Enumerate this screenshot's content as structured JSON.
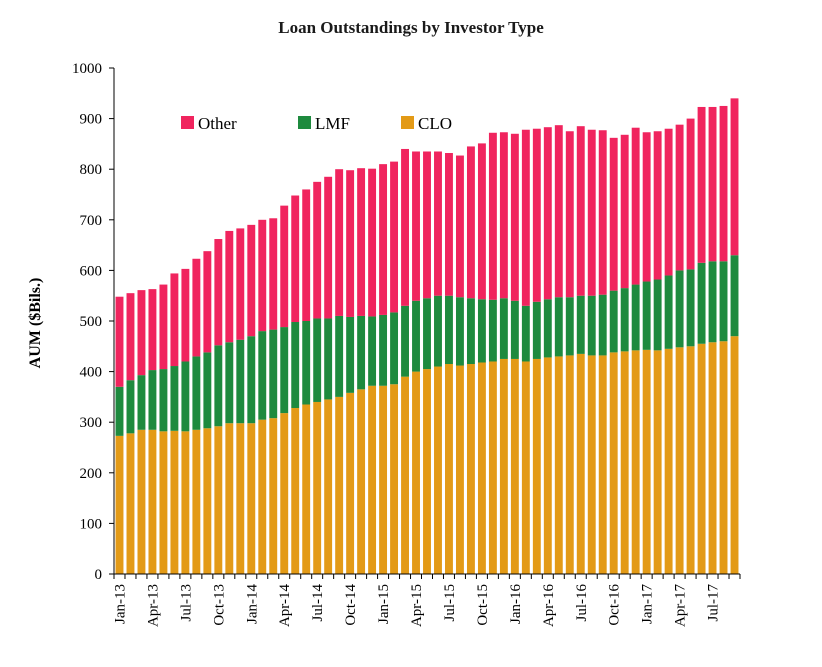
{
  "chart_data": {
    "type": "bar",
    "stacked": true,
    "title": "Loan Outstandings by Investor Type",
    "ylabel": "AUM ($Bils.)",
    "xlabel": "",
    "ylim": [
      0,
      1000
    ],
    "yticks": [
      0,
      100,
      200,
      300,
      400,
      500,
      600,
      700,
      800,
      900,
      1000
    ],
    "grid": false,
    "legend_position": "top-left",
    "categories": [
      "Jan-13",
      "Feb-13",
      "Mar-13",
      "Apr-13",
      "May-13",
      "Jun-13",
      "Jul-13",
      "Aug-13",
      "Sep-13",
      "Oct-13",
      "Nov-13",
      "Dec-13",
      "Jan-14",
      "Feb-14",
      "Mar-14",
      "Apr-14",
      "May-14",
      "Jun-14",
      "Jul-14",
      "Aug-14",
      "Sep-14",
      "Oct-14",
      "Nov-14",
      "Dec-14",
      "Jan-15",
      "Feb-15",
      "Mar-15",
      "Apr-15",
      "May-15",
      "Jun-15",
      "Jul-15",
      "Aug-15",
      "Sep-15",
      "Oct-15",
      "Nov-15",
      "Dec-15",
      "Jan-16",
      "Feb-16",
      "Mar-16",
      "Apr-16",
      "May-16",
      "Jun-16",
      "Jul-16",
      "Aug-16",
      "Sep-16",
      "Oct-16",
      "Nov-16",
      "Dec-16",
      "Jan-17",
      "Feb-17",
      "Mar-17",
      "Apr-17",
      "May-17",
      "Jun-17",
      "Jul-17",
      "Aug-17",
      "Sep-17"
    ],
    "tick_labels": [
      "Jan-13",
      "Apr-13",
      "Jul-13",
      "Oct-13",
      "Jan-14",
      "Apr-14",
      "Jul-14",
      "Oct-14",
      "Jan-15",
      "Apr-15",
      "Jul-15",
      "Oct-15",
      "Jan-16",
      "Apr-16",
      "Jul-16",
      "Oct-16",
      "Jan-17",
      "Apr-17",
      "Jul-17"
    ],
    "series": [
      {
        "name": "CLO",
        "color": "#E39A16",
        "values": [
          273,
          278,
          285,
          285,
          282,
          283,
          282,
          285,
          288,
          292,
          298,
          298,
          298,
          305,
          308,
          318,
          328,
          335,
          340,
          345,
          350,
          358,
          365,
          372,
          372,
          375,
          390,
          400,
          405,
          410,
          415,
          412,
          415,
          418,
          420,
          425,
          425,
          420,
          425,
          428,
          430,
          432,
          435,
          432,
          432,
          438,
          440,
          442,
          443,
          442,
          445,
          448,
          450,
          455,
          458,
          460,
          470
        ]
      },
      {
        "name": "LMF",
        "color": "#1E8A3E",
        "values": [
          97,
          105,
          108,
          118,
          123,
          128,
          138,
          145,
          150,
          160,
          160,
          165,
          172,
          175,
          175,
          170,
          170,
          165,
          165,
          160,
          160,
          150,
          145,
          137,
          140,
          142,
          140,
          140,
          140,
          140,
          135,
          135,
          130,
          125,
          122,
          120,
          115,
          110,
          113,
          115,
          117,
          115,
          115,
          118,
          120,
          122,
          125,
          130,
          135,
          140,
          145,
          152,
          152,
          160,
          160,
          158,
          160
        ]
      },
      {
        "name": "Other",
        "color": "#F0245E",
        "values": [
          178,
          172,
          168,
          160,
          167,
          183,
          183,
          193,
          200,
          210,
          220,
          220,
          220,
          220,
          220,
          240,
          250,
          260,
          270,
          280,
          290,
          290,
          292,
          292,
          298,
          298,
          310,
          295,
          290,
          285,
          282,
          280,
          300,
          308,
          330,
          328,
          330,
          348,
          342,
          340,
          340,
          328,
          335,
          328,
          325,
          302,
          303,
          310,
          295,
          293,
          290,
          288,
          298,
          308,
          305,
          307,
          310
        ]
      }
    ]
  }
}
